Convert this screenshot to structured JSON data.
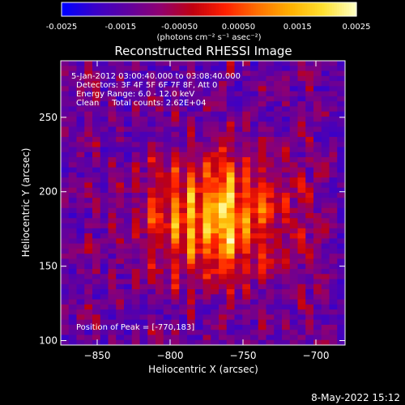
{
  "chart_data": {
    "type": "heatmap",
    "title": "Reconstructed RHESSI Image",
    "xlabel": "Heliocentric X (arcsec)",
    "ylabel": "Heliocentric Y (arcsec)",
    "xlim": [
      -875,
      -680
    ],
    "ylim": [
      97,
      288
    ],
    "xticks": [
      -850,
      -800,
      -750,
      -700
    ],
    "yticks": [
      100,
      150,
      200,
      250
    ],
    "colorbar": {
      "min": -0.0025,
      "max": 0.0025,
      "ticks": [
        "-0.0025",
        "-0.0015",
        "-0.00050",
        "0.00050",
        "0.0015",
        "0.0025"
      ],
      "unit_label": "(photons cm⁻² s⁻¹ asec⁻²)"
    },
    "peak": {
      "x": -770,
      "y": 183
    },
    "info_lines": [
      "5-Jan-2012 03:00:40.000 to 03:08:40.000",
      "Detectors: 3F 4F 5F 6F 7F 8F, Att 0",
      "Energy Range: 6.0 - 12.0 keV",
      "Clean     Total counts: 2.62E+04"
    ],
    "peak_label": "Position of Peak = [-770,183]",
    "colormap": [
      "#0000ff",
      "#3a00c8",
      "#6000a0",
      "#900070",
      "#c00010",
      "#ff2000",
      "#ff7000",
      "#ffb000",
      "#ffe030",
      "#ffffc0"
    ]
  },
  "footer_date": "8-May-2022 15:12"
}
